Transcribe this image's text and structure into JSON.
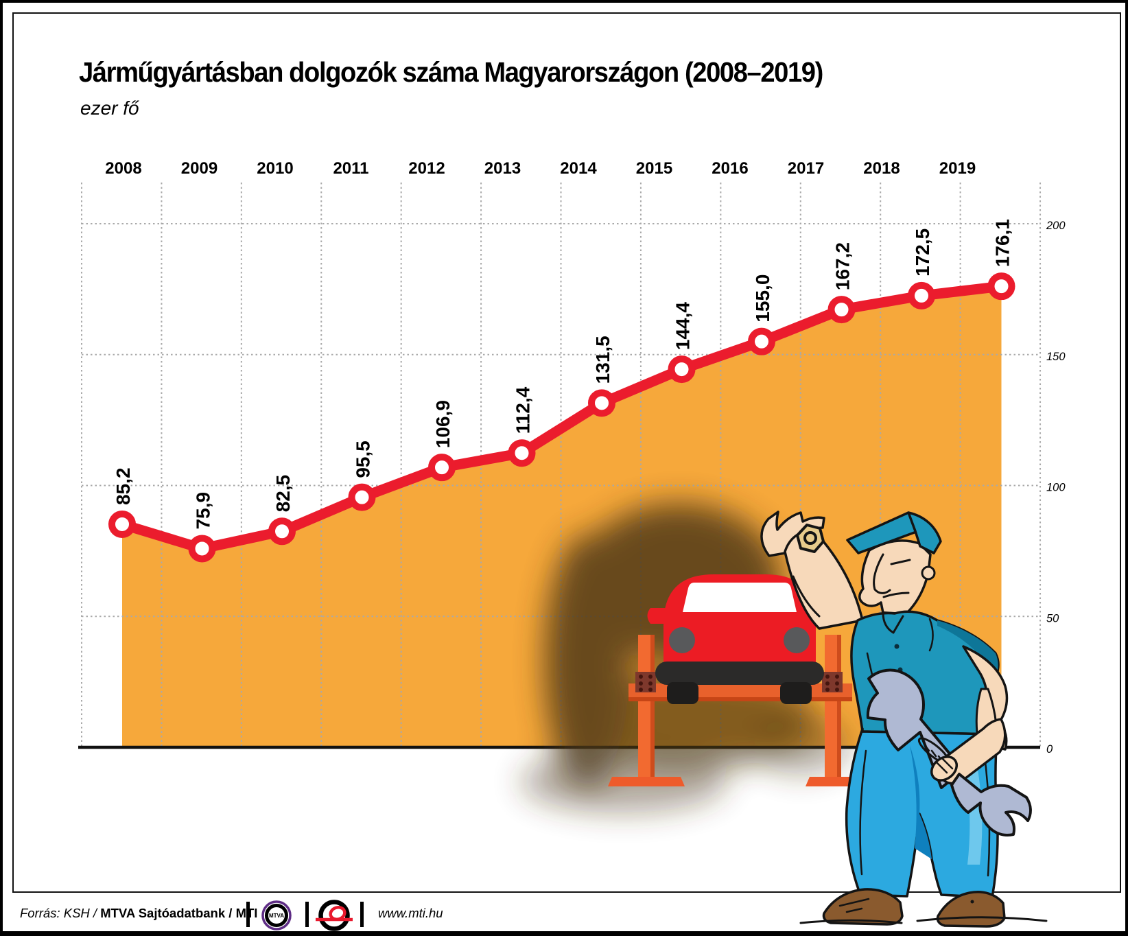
{
  "title": "Járműgyártásban dolgozók száma Magyarországon (2008–2019)",
  "subtitle": "ezer fő",
  "chart_data": {
    "type": "area",
    "title": "Járműgyártásban dolgozók száma Magyarországon (2008–2019)",
    "xlabel": "",
    "ylabel": "ezer fő",
    "categories": [
      2008,
      2009,
      2010,
      2011,
      2012,
      2013,
      2014,
      2015,
      2016,
      2017,
      2018,
      2019
    ],
    "values": [
      85.2,
      75.9,
      82.5,
      95.5,
      106.9,
      112.4,
      131.5,
      144.4,
      155.0,
      167.2,
      172.5,
      176.1
    ],
    "value_labels": [
      "85,2",
      "75,9",
      "82,5",
      "95,5",
      "106,9",
      "112,4",
      "131,5",
      "144,4",
      "155,0",
      "167,2",
      "172,5",
      "176,1"
    ],
    "y_ticks": [
      0,
      50,
      100,
      150,
      200
    ],
    "ylim": [
      0,
      200
    ],
    "grid": true,
    "legend_position": "none",
    "y_axis_side": "right"
  },
  "colors": {
    "area": "#F6A83B",
    "line": "#EB1C2D",
    "grid": "#A9A9A9",
    "lift_orange": "#F26A30",
    "overall_blue": "#2CA9E0",
    "shirt_teal": "#1E97BB",
    "mtva_purple": "#5E2C85",
    "mti_red": "#E8192D"
  },
  "footer": {
    "source_italic": "Forrás: KSH / ",
    "source_bold": "MTVA Sajtóadatbank",
    "source_suffix": " / MTI",
    "mtva_logo_text": "MTVA",
    "website": "www.mti.hu"
  }
}
